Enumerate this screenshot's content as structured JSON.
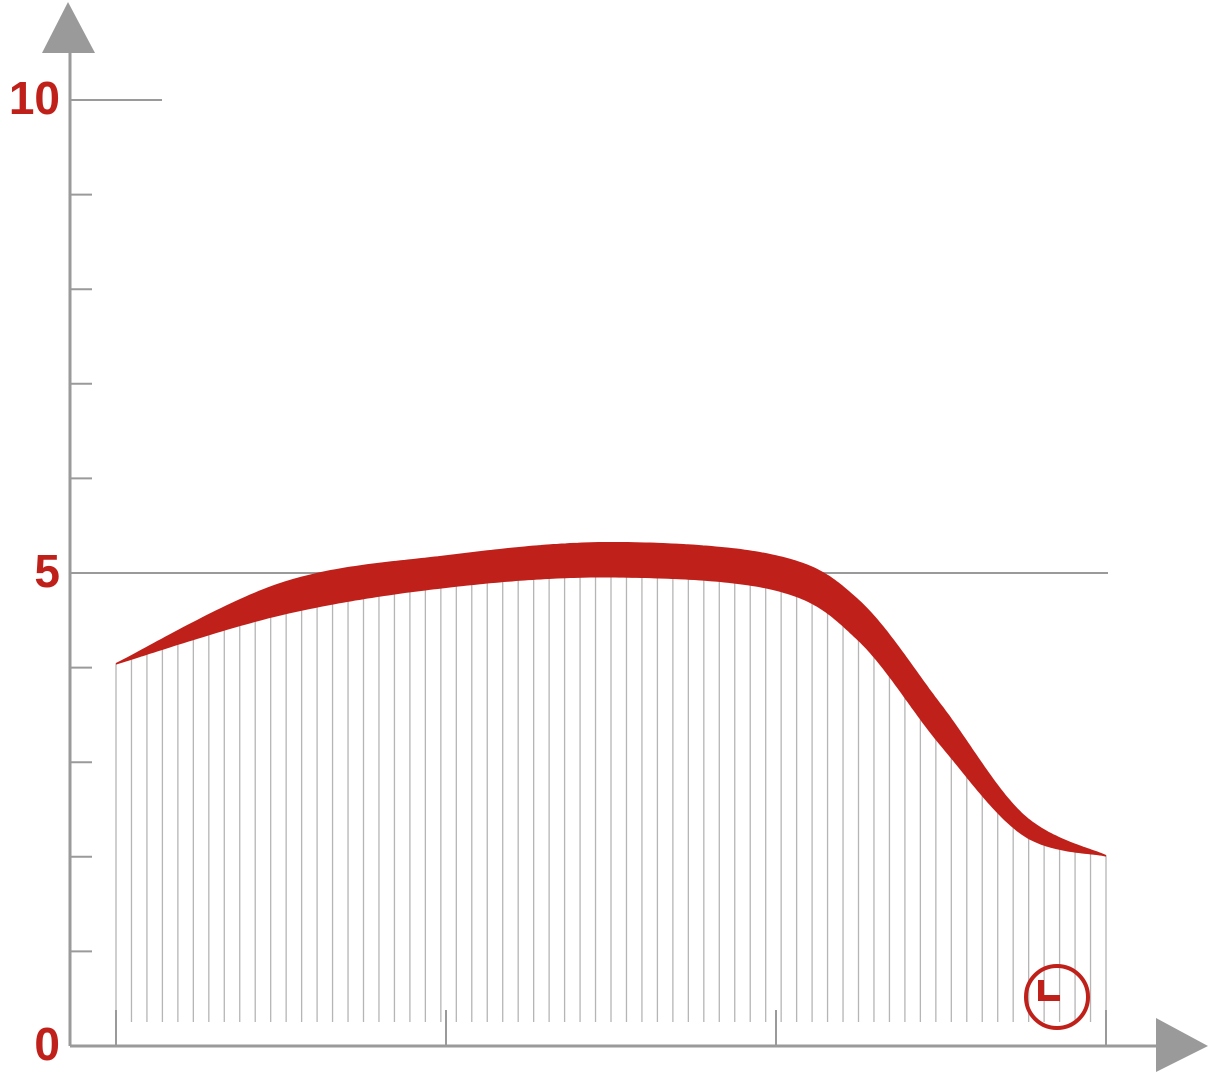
{
  "chart_data": {
    "type": "band",
    "x": [
      0,
      0.5,
      1,
      1.5,
      2,
      2.25,
      2.5,
      2.75,
      3
    ],
    "series": [
      {
        "color": "#c0201a",
        "values": [
          4.04,
          4.89,
          5.18,
          5.32,
          5.18,
          4.71,
          3.6,
          2.44,
          2.01
        ]
      },
      {
        "color": "#c0201a",
        "values": [
          4.04,
          4.56,
          4.85,
          4.96,
          4.82,
          4.29,
          3.18,
          2.23,
          2.01
        ]
      }
    ],
    "ylim": [
      0,
      10
    ],
    "yticks": [
      0,
      5,
      10
    ],
    "yminorticks": [
      1,
      2,
      3,
      4,
      6,
      7,
      8,
      9
    ],
    "xlim": [
      0,
      3
    ],
    "xticks": [
      0,
      1,
      2,
      3
    ],
    "axis_color": "#9a9a9a"
  }
}
